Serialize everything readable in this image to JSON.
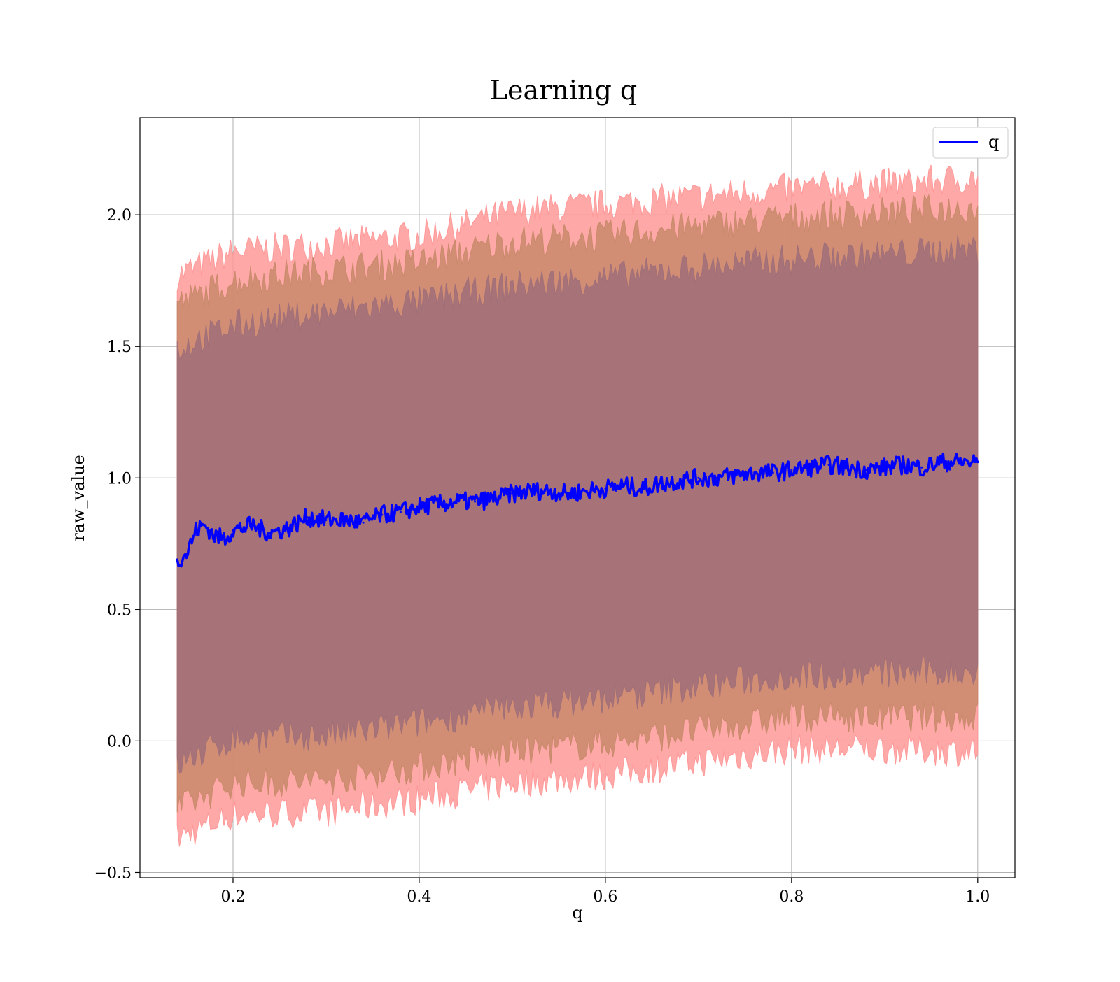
{
  "chart_data": {
    "type": "area",
    "title": "Learning q",
    "xlabel": "q",
    "ylabel": "raw_value",
    "xlim": [
      0.1,
      1.04
    ],
    "ylim": [
      -0.52,
      2.37
    ],
    "x_ticks": [
      0.2,
      0.4,
      0.6,
      0.8,
      1.0
    ],
    "x_tick_labels": [
      "0.2",
      "0.4",
      "0.6",
      "0.8",
      "1.0"
    ],
    "y_ticks": [
      -0.5,
      0.0,
      0.5,
      1.0,
      1.5,
      2.0
    ],
    "y_tick_labels": [
      "−0.5",
      "0.0",
      "0.5",
      "1.0",
      "1.5",
      "2.0"
    ],
    "grid": true,
    "legend": {
      "position": "top-right",
      "entries": [
        "q"
      ]
    },
    "series": [
      {
        "name": "q",
        "color": "#0000ff",
        "x": [
          0.14,
          0.15,
          0.16,
          0.17,
          0.18,
          0.19,
          0.2,
          0.22,
          0.24,
          0.26,
          0.28,
          0.3,
          0.32,
          0.34,
          0.36,
          0.38,
          0.4,
          0.42,
          0.44,
          0.46,
          0.48,
          0.5,
          0.52,
          0.54,
          0.56,
          0.58,
          0.6,
          0.62,
          0.64,
          0.66,
          0.68,
          0.7,
          0.72,
          0.74,
          0.76,
          0.78,
          0.8,
          0.82,
          0.84,
          0.86,
          0.88,
          0.9,
          0.92,
          0.94,
          0.96,
          0.98,
          1.0
        ],
        "y": [
          0.69,
          0.71,
          0.8,
          0.82,
          0.78,
          0.77,
          0.8,
          0.82,
          0.79,
          0.81,
          0.85,
          0.84,
          0.84,
          0.83,
          0.86,
          0.87,
          0.89,
          0.9,
          0.91,
          0.91,
          0.92,
          0.94,
          0.95,
          0.95,
          0.94,
          0.95,
          0.96,
          0.97,
          0.96,
          0.98,
          0.99,
          1.0,
          1.0,
          1.01,
          1.02,
          1.02,
          1.03,
          1.04,
          1.05,
          1.04,
          1.03,
          1.04,
          1.05,
          1.04,
          1.06,
          1.06,
          1.06
        ]
      }
    ],
    "bands": [
      {
        "name": "outer band",
        "color": "#ff9999",
        "x": [
          0.14,
          0.2,
          0.3,
          0.4,
          0.5,
          0.6,
          0.7,
          0.8,
          0.9,
          1.0
        ],
        "upper": [
          1.77,
          1.86,
          1.89,
          1.92,
          2.01,
          2.04,
          2.07,
          2.1,
          2.12,
          2.14
        ],
        "lower": [
          -0.37,
          -0.28,
          -0.27,
          -0.22,
          -0.16,
          -0.13,
          -0.08,
          -0.03,
          -0.03,
          -0.04
        ]
      },
      {
        "name": "middle band",
        "color": "#c98a6b",
        "x": [
          0.14,
          0.2,
          0.3,
          0.4,
          0.5,
          0.6,
          0.7,
          0.8,
          0.9,
          1.0
        ],
        "upper": [
          1.66,
          1.75,
          1.79,
          1.82,
          1.9,
          1.92,
          1.96,
          1.99,
          2.01,
          2.03
        ],
        "lower": [
          -0.26,
          -0.16,
          -0.15,
          -0.1,
          -0.04,
          -0.01,
          0.04,
          0.09,
          0.09,
          0.09
        ]
      },
      {
        "name": "inner band",
        "color": "#a06f79",
        "x": [
          0.14,
          0.2,
          0.3,
          0.4,
          0.5,
          0.6,
          0.7,
          0.8,
          0.9,
          1.0
        ],
        "upper": [
          1.49,
          1.58,
          1.63,
          1.67,
          1.73,
          1.76,
          1.8,
          1.83,
          1.85,
          1.87
        ],
        "lower": [
          -0.09,
          0.01,
          0.02,
          0.07,
          0.13,
          0.16,
          0.21,
          0.25,
          0.26,
          0.26
        ]
      }
    ]
  }
}
